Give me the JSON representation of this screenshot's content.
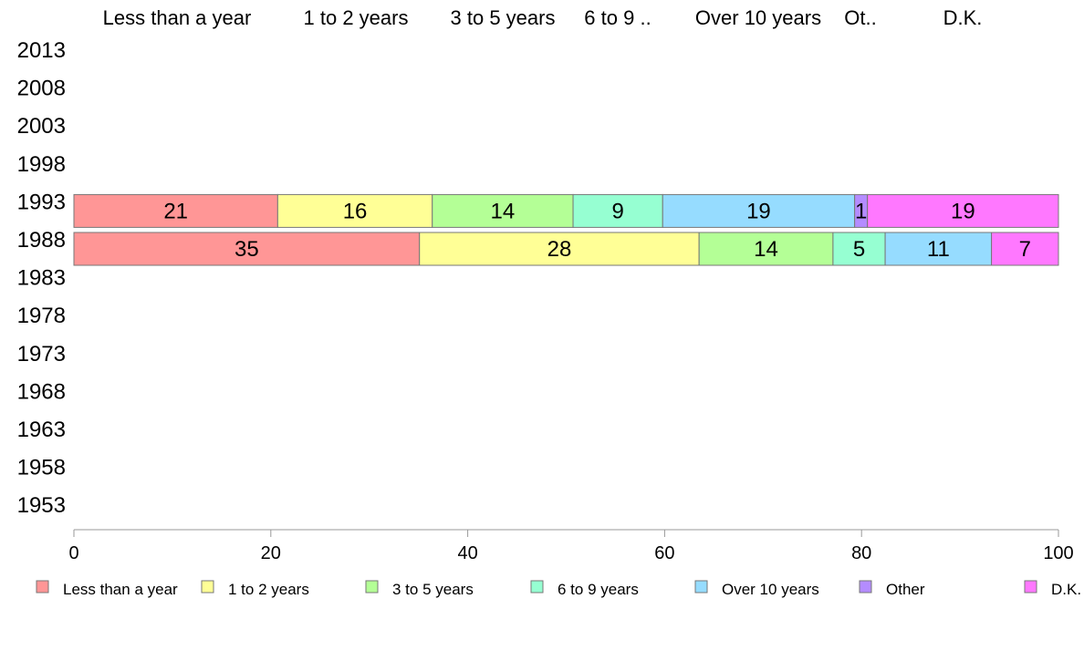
{
  "chart_data": {
    "type": "bar",
    "orientation": "horizontal",
    "stacked": true,
    "categories": [
      "2013",
      "2008",
      "2003",
      "1998",
      "1993",
      "1988",
      "1983",
      "1978",
      "1973",
      "1968",
      "1963",
      "1958",
      "1953"
    ],
    "column_headers": [
      "Less than a year",
      "1 to 2 years",
      "3 to 5 years",
      "6 to 9 ..",
      "Over 10 years",
      "Ot..",
      "D.K."
    ],
    "series": [
      {
        "name": "Less than a year",
        "color": "#FF9696",
        "values": [
          null,
          null,
          null,
          null,
          21,
          35,
          null,
          null,
          null,
          null,
          null,
          null,
          null
        ]
      },
      {
        "name": "1 to 2 years",
        "color": "#FFFF96",
        "values": [
          null,
          null,
          null,
          null,
          16,
          28,
          null,
          null,
          null,
          null,
          null,
          null,
          null
        ]
      },
      {
        "name": "3 to 5 years",
        "color": "#B4FF96",
        "values": [
          null,
          null,
          null,
          null,
          14,
          14,
          null,
          null,
          null,
          null,
          null,
          null,
          null
        ]
      },
      {
        "name": "6 to 9 years",
        "color": "#96FFD2",
        "values": [
          null,
          null,
          null,
          null,
          9,
          5,
          null,
          null,
          null,
          null,
          null,
          null,
          null
        ]
      },
      {
        "name": "Over 10 years",
        "color": "#96DCFF",
        "values": [
          null,
          null,
          null,
          null,
          19,
          11,
          null,
          null,
          null,
          null,
          null,
          null,
          null
        ]
      },
      {
        "name": "Other",
        "color": "#B48CFF",
        "values": [
          null,
          null,
          null,
          null,
          1,
          0,
          null,
          null,
          null,
          null,
          null,
          null,
          null
        ]
      },
      {
        "name": "D.K.",
        "color": "#FF78FF",
        "values": [
          null,
          null,
          null,
          null,
          19,
          7,
          null,
          null,
          null,
          null,
          null,
          null,
          null
        ]
      }
    ],
    "segments": {
      "1993": [
        20.7,
        15.7,
        14.3,
        9.1,
        19.5,
        1.3,
        19.4
      ],
      "1988": [
        35.1,
        28.4,
        13.6,
        5.3,
        10.8,
        0,
        6.8
      ]
    },
    "xlim": [
      0,
      100
    ],
    "xticks": [
      0,
      20,
      40,
      60,
      80,
      100
    ],
    "legend_position": "bottom",
    "grid": false
  }
}
